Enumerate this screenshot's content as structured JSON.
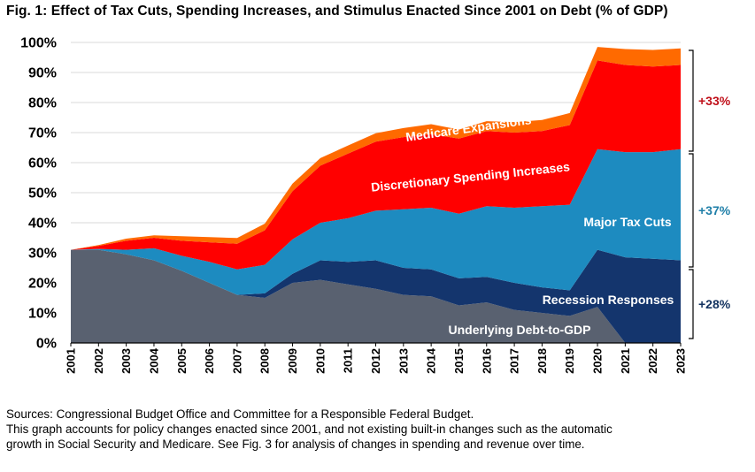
{
  "title": "Fig. 1: Effect of Tax Cuts, Spending Increases, and Stimulus Enacted Since 2001 on Debt (% of GDP)",
  "chart_data": {
    "type": "area",
    "stacked": true,
    "title": "Fig. 1: Effect of Tax Cuts, Spending Increases, and Stimulus Enacted Since 2001 on Debt (% of GDP)",
    "x": [
      2001,
      2002,
      2003,
      2004,
      2005,
      2006,
      2007,
      2008,
      2009,
      2010,
      2011,
      2012,
      2013,
      2014,
      2015,
      2016,
      2017,
      2018,
      2019,
      2020,
      2021,
      2022,
      2023
    ],
    "ylim": [
      0,
      100
    ],
    "yticks": [
      "0%",
      "10%",
      "20%",
      "30%",
      "40%",
      "50%",
      "60%",
      "70%",
      "80%",
      "90%",
      "100%"
    ],
    "grid": true,
    "series": [
      {
        "name": "Underlying Debt-to-GDP",
        "color": "#596170",
        "values": [
          31,
          31,
          29.5,
          27.5,
          24,
          20,
          16,
          15,
          20,
          21,
          19.5,
          18,
          16,
          15.5,
          12.5,
          13.5,
          11,
          10,
          9,
          12,
          0,
          0,
          0
        ]
      },
      {
        "name": "Recession Responses",
        "color": "#14356d",
        "values": [
          0,
          0,
          0,
          0,
          0,
          0,
          0,
          1.5,
          3,
          6.5,
          7.5,
          9.5,
          9,
          9,
          9,
          8.5,
          9,
          8.5,
          8.5,
          19,
          28.5,
          28,
          27.5
        ]
      },
      {
        "name": "Major Tax Cuts",
        "color": "#1d8bc0",
        "values": [
          0,
          0.3,
          1.5,
          4,
          5,
          7,
          8.5,
          9.5,
          11.5,
          12.5,
          14.5,
          16.5,
          19.5,
          20.5,
          21.5,
          23.5,
          25,
          27,
          28.5,
          33.5,
          35,
          35.5,
          37
        ]
      },
      {
        "name": "Discretionary Spending Increases",
        "color": "#ff0000",
        "values": [
          0,
          1,
          3,
          3.5,
          5,
          6.5,
          8.5,
          11.5,
          16,
          19,
          21.5,
          23,
          24,
          24.5,
          25,
          25,
          25,
          25,
          26.5,
          29.5,
          29,
          28.5,
          28
        ]
      },
      {
        "name": "Medicare Expansions",
        "color": "#ff6a00",
        "values": [
          0,
          0.3,
          0.7,
          0.8,
          1.5,
          1.7,
          1.9,
          2.2,
          2.5,
          2.5,
          2.7,
          2.8,
          3,
          3.3,
          3,
          3.3,
          3.5,
          3.7,
          4,
          4.5,
          5.3,
          5.5,
          5.5
        ]
      }
    ],
    "annotations": [
      {
        "text": "Medicare Expansions",
        "color": "#ffffff"
      },
      {
        "text": "Discretionary Spending Increases",
        "color": "#ffffff"
      },
      {
        "text": "Major Tax Cuts",
        "color": "#ffffff"
      },
      {
        "text": "Recession Responses",
        "color": "#ffffff"
      },
      {
        "text": "Underlying Debt-to-GDP",
        "color": "#ffffff"
      }
    ],
    "brackets": [
      {
        "text": "+33%",
        "color": "#c0101a"
      },
      {
        "text": "+37%",
        "color": "#1f7fa8"
      },
      {
        "text": "+28%",
        "color": "#12325f"
      }
    ]
  },
  "footnotes": [
    "Sources: Congressional Budget Office and Committee for a Responsible Federal Budget.",
    "This graph accounts for policy changes enacted since 2001, and not existing built-in changes such as the automatic",
    "growth in Social Security and Medicare. See Fig. 3 for analysis of changes in spending and revenue over time."
  ]
}
